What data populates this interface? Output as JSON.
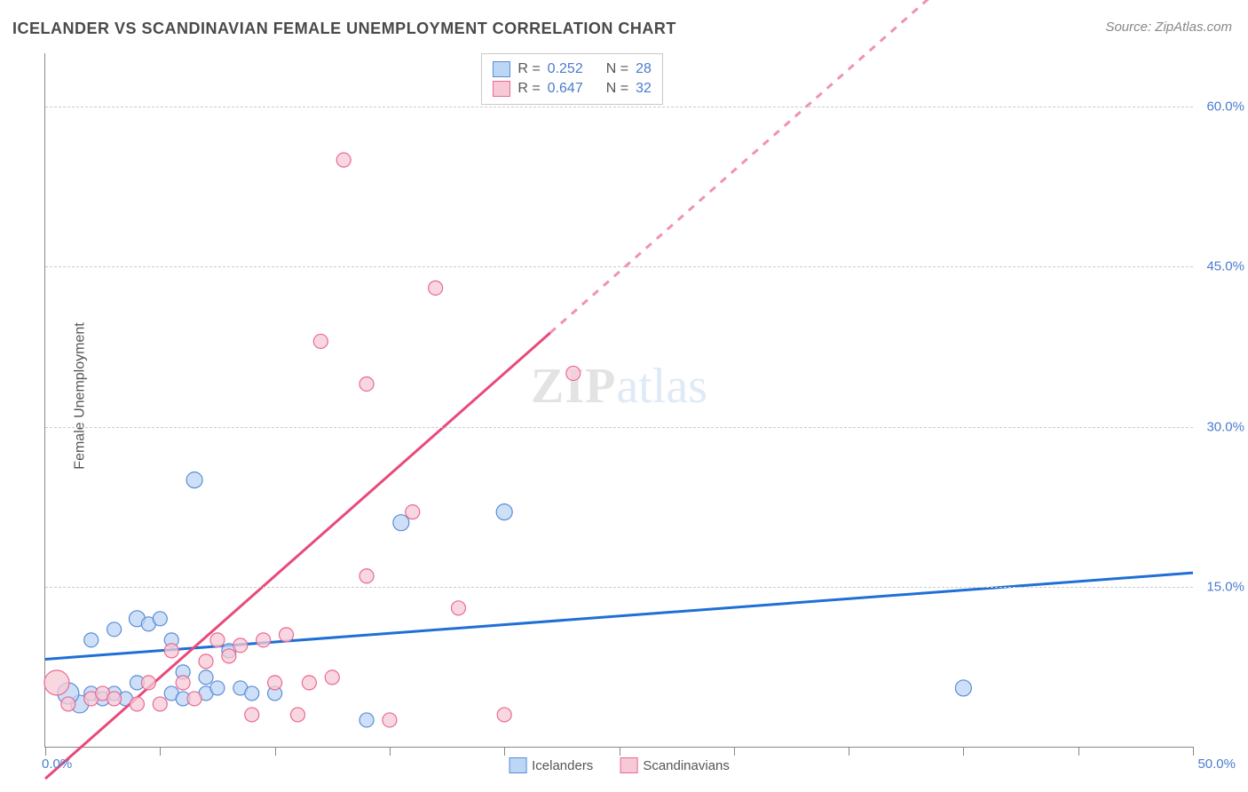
{
  "title": "ICELANDER VS SCANDINAVIAN FEMALE UNEMPLOYMENT CORRELATION CHART",
  "source": "Source: ZipAtlas.com",
  "yaxis_label": "Female Unemployment",
  "watermark_a": "ZIP",
  "watermark_b": "atlas",
  "chart": {
    "type": "scatter",
    "xlim": [
      0,
      50
    ],
    "ylim": [
      0,
      65
    ],
    "xtick_start_label": "0.0%",
    "xtick_end_label": "50.0%",
    "xtick_positions": [
      0,
      5,
      10,
      15,
      20,
      25,
      30,
      35,
      40,
      45,
      50
    ],
    "ytick_positions": [
      15,
      30,
      45,
      60
    ],
    "ytick_labels": [
      "15.0%",
      "30.0%",
      "45.0%",
      "60.0%"
    ],
    "ytick_color": "#4a7bd0",
    "xtick_color": "#4a7bd0",
    "grid_color": "#cccccc",
    "axis_color": "#888888",
    "background_color": "#ffffff",
    "series": [
      {
        "name": "Icelanders",
        "fill": "#bcd6f5",
        "stroke": "#5b8cd6",
        "trend_color": "#1f6fd6",
        "trend_width": 3,
        "trend_dash_from_x": null,
        "R": "0.252",
        "N": "28",
        "trend_y_at_x0": 8.2,
        "trend_y_at_x50": 16.3,
        "points": [
          {
            "x": 1.5,
            "y": 4,
            "r": 10
          },
          {
            "x": 1,
            "y": 5,
            "r": 12
          },
          {
            "x": 2,
            "y": 5,
            "r": 8
          },
          {
            "x": 2.5,
            "y": 4.5,
            "r": 8
          },
          {
            "x": 3,
            "y": 5,
            "r": 8
          },
          {
            "x": 3.5,
            "y": 4.5,
            "r": 8
          },
          {
            "x": 4,
            "y": 12,
            "r": 9
          },
          {
            "x": 4.5,
            "y": 11.5,
            "r": 8
          },
          {
            "x": 5,
            "y": 12,
            "r": 8
          },
          {
            "x": 5.5,
            "y": 5,
            "r": 8
          },
          {
            "x": 5.5,
            "y": 10,
            "r": 8
          },
          {
            "x": 6,
            "y": 4.5,
            "r": 8
          },
          {
            "x": 6.5,
            "y": 25,
            "r": 9
          },
          {
            "x": 7,
            "y": 5,
            "r": 8
          },
          {
            "x": 7.5,
            "y": 5.5,
            "r": 8
          },
          {
            "x": 8,
            "y": 9,
            "r": 8
          },
          {
            "x": 8.5,
            "y": 5.5,
            "r": 8
          },
          {
            "x": 9,
            "y": 5,
            "r": 8
          },
          {
            "x": 10,
            "y": 5,
            "r": 8
          },
          {
            "x": 14,
            "y": 2.5,
            "r": 8
          },
          {
            "x": 15.5,
            "y": 21,
            "r": 9
          },
          {
            "x": 20,
            "y": 22,
            "r": 9
          },
          {
            "x": 2,
            "y": 10,
            "r": 8
          },
          {
            "x": 3,
            "y": 11,
            "r": 8
          },
          {
            "x": 6,
            "y": 7,
            "r": 8
          },
          {
            "x": 7,
            "y": 6.5,
            "r": 8
          },
          {
            "x": 40,
            "y": 5.5,
            "r": 9
          },
          {
            "x": 4,
            "y": 6,
            "r": 8
          }
        ]
      },
      {
        "name": "Scandinavians",
        "fill": "#f7c9d6",
        "stroke": "#e86a93",
        "trend_color": "#e84a7a",
        "trend_width": 3,
        "trend_dash_from_x": 22,
        "R": "0.647",
        "N": "32",
        "trend_y_at_x0": -3,
        "trend_y_at_x50": 92,
        "points": [
          {
            "x": 0.5,
            "y": 6,
            "r": 14
          },
          {
            "x": 1,
            "y": 4,
            "r": 8
          },
          {
            "x": 2,
            "y": 4.5,
            "r": 8
          },
          {
            "x": 2.5,
            "y": 5,
            "r": 8
          },
          {
            "x": 3,
            "y": 4.5,
            "r": 8
          },
          {
            "x": 4,
            "y": 4,
            "r": 8
          },
          {
            "x": 4.5,
            "y": 6,
            "r": 8
          },
          {
            "x": 5,
            "y": 4,
            "r": 8
          },
          {
            "x": 5.5,
            "y": 9,
            "r": 8
          },
          {
            "x": 6,
            "y": 6,
            "r": 8
          },
          {
            "x": 6.5,
            "y": 4.5,
            "r": 8
          },
          {
            "x": 7,
            "y": 8,
            "r": 8
          },
          {
            "x": 7.5,
            "y": 10,
            "r": 8
          },
          {
            "x": 8,
            "y": 8.5,
            "r": 8
          },
          {
            "x": 8.5,
            "y": 9.5,
            "r": 8
          },
          {
            "x": 9,
            "y": 3,
            "r": 8
          },
          {
            "x": 9.5,
            "y": 10,
            "r": 8
          },
          {
            "x": 10,
            "y": 6,
            "r": 8
          },
          {
            "x": 10.5,
            "y": 10.5,
            "r": 8
          },
          {
            "x": 11,
            "y": 3,
            "r": 8
          },
          {
            "x": 11.5,
            "y": 6,
            "r": 8
          },
          {
            "x": 12,
            "y": 38,
            "r": 8
          },
          {
            "x": 12.5,
            "y": 6.5,
            "r": 8
          },
          {
            "x": 13,
            "y": 55,
            "r": 8
          },
          {
            "x": 14,
            "y": 16,
            "r": 8
          },
          {
            "x": 14,
            "y": 34,
            "r": 8
          },
          {
            "x": 15,
            "y": 2.5,
            "r": 8
          },
          {
            "x": 16,
            "y": 22,
            "r": 8
          },
          {
            "x": 17,
            "y": 43,
            "r": 8
          },
          {
            "x": 18,
            "y": 13,
            "r": 8
          },
          {
            "x": 20,
            "y": 3,
            "r": 8
          },
          {
            "x": 23,
            "y": 35,
            "r": 8
          }
        ]
      }
    ]
  },
  "legend": {
    "R_label": "R =",
    "N_label": "N =",
    "series_label_1": "Icelanders",
    "series_label_2": "Scandinavians"
  }
}
